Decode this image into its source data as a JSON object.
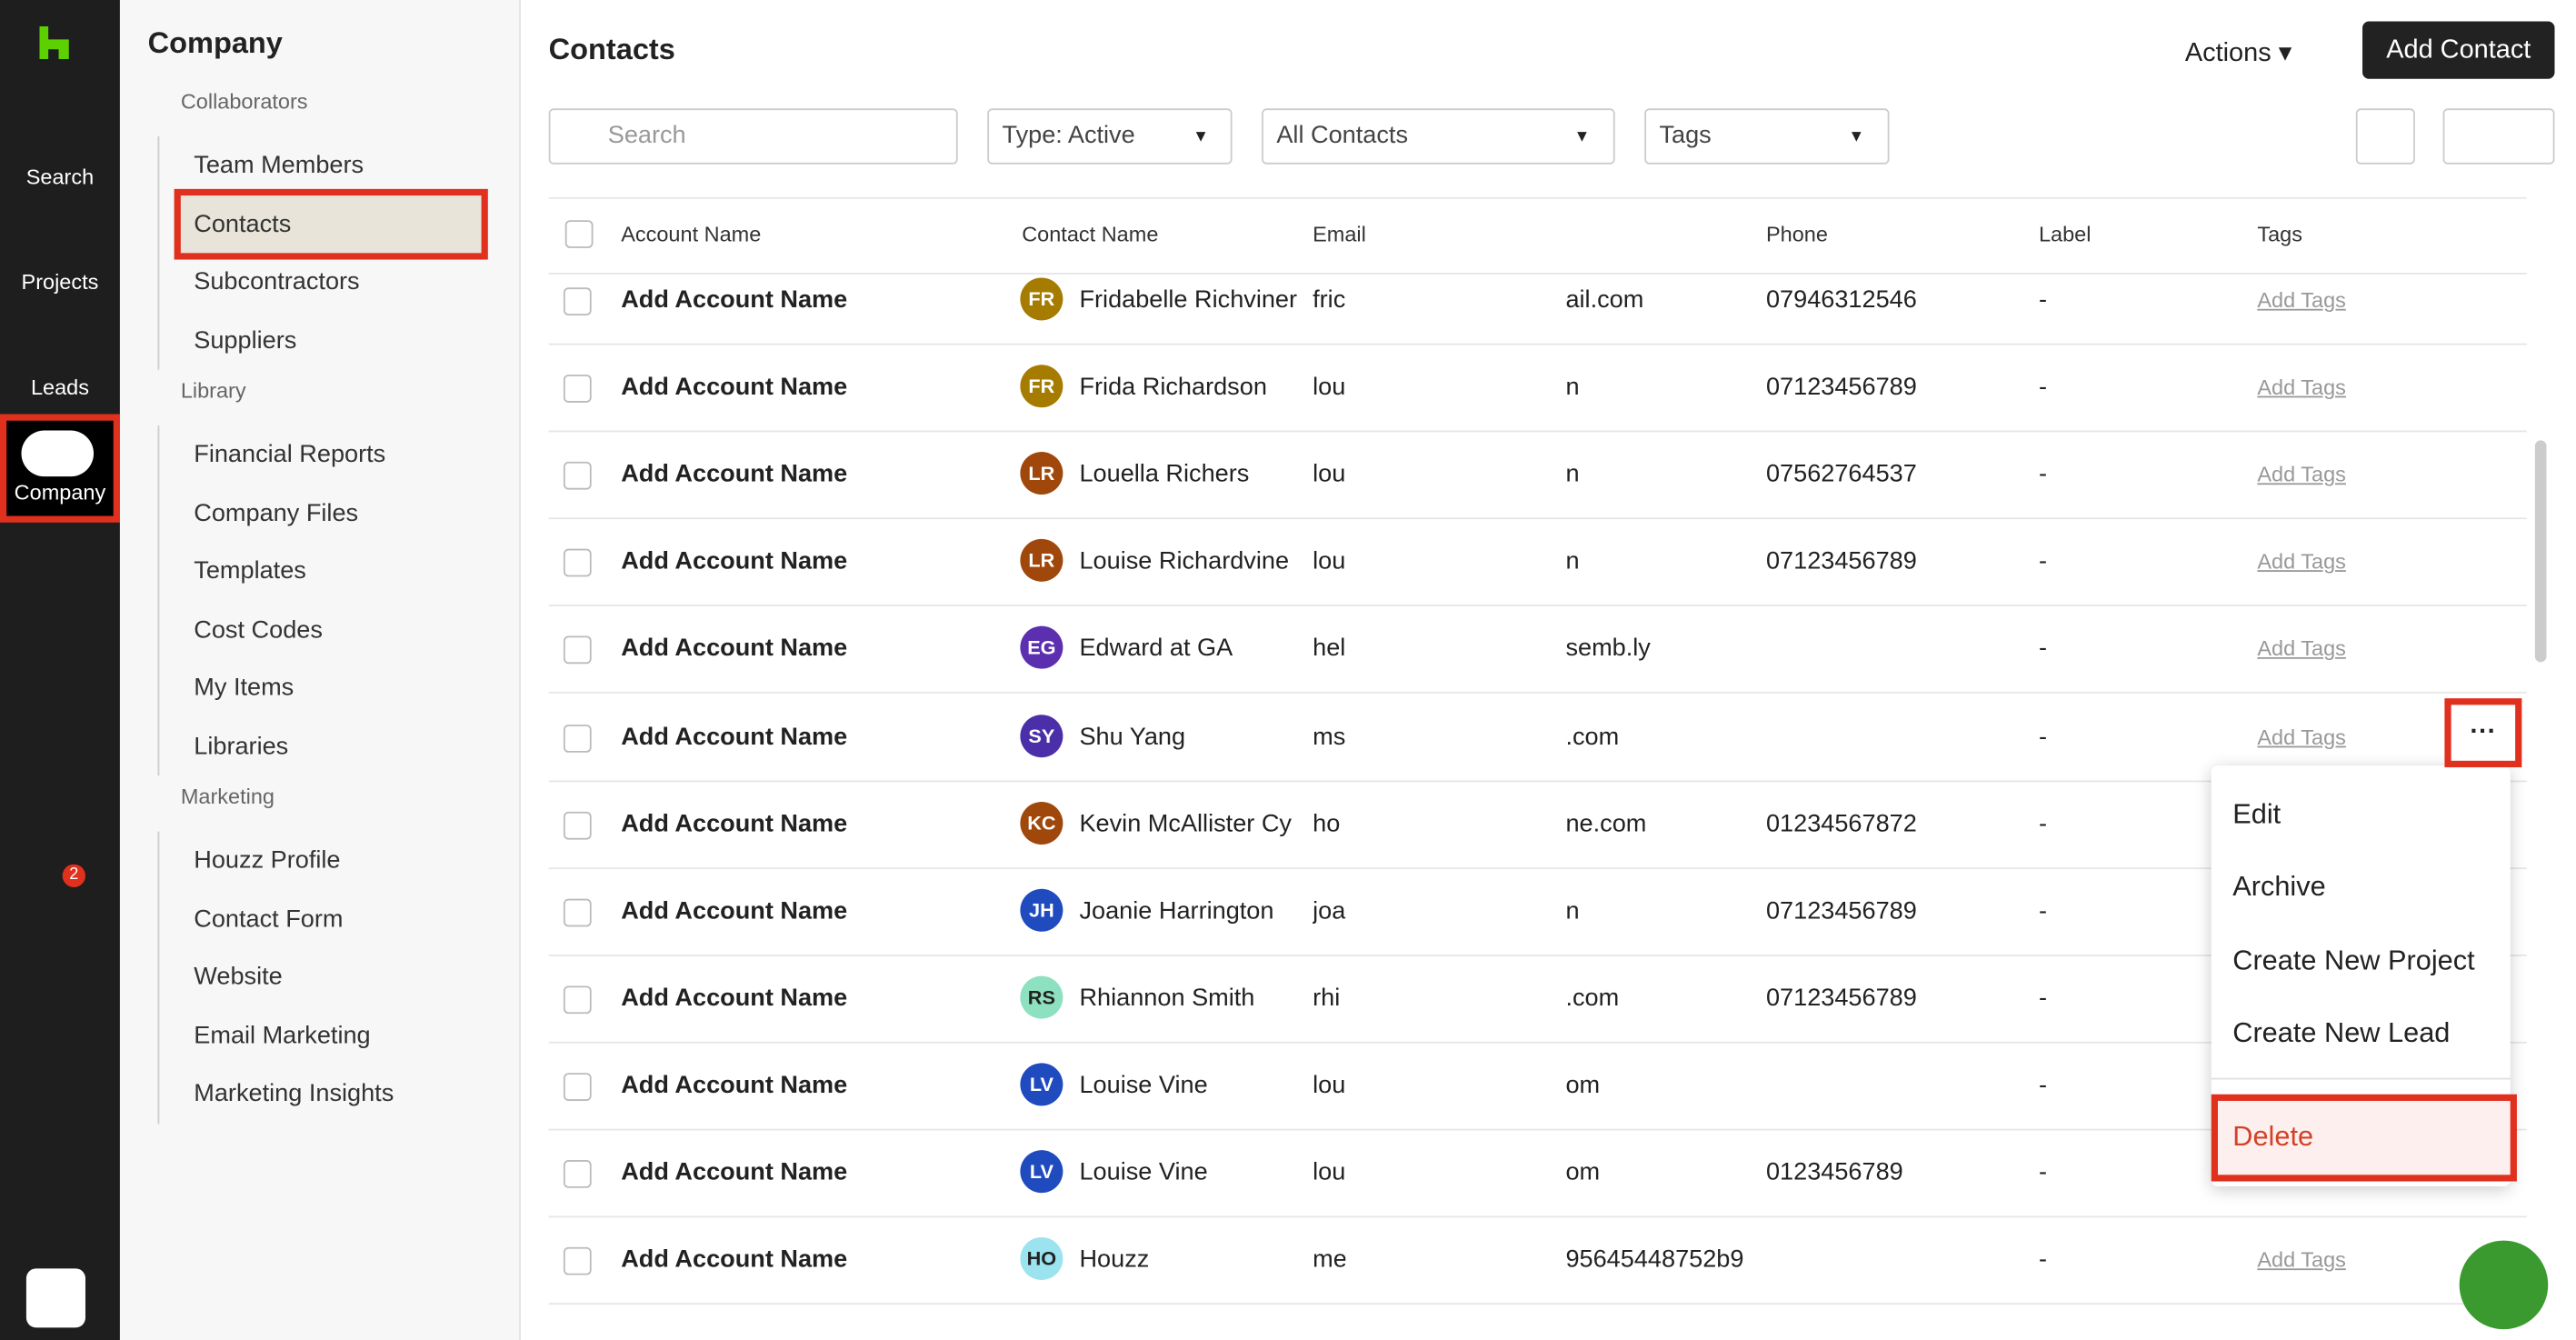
{
  "nav": {
    "items": [
      "Search",
      "Projects",
      "Leads",
      "Company"
    ],
    "badge": "2"
  },
  "sidebar": {
    "title": "Company",
    "sections": [
      {
        "title": "Collaborators",
        "items": [
          "Team Members",
          "Contacts",
          "Subcontractors",
          "Suppliers"
        ]
      },
      {
        "title": "Library",
        "items": [
          "Financial Reports",
          "Company Files",
          "Templates",
          "Cost Codes",
          "My Items",
          "Libraries"
        ]
      },
      {
        "title": "Marketing",
        "items": [
          "Houzz Profile",
          "Contact Form",
          "Website",
          "Email Marketing",
          "Marketing Insights"
        ]
      }
    ]
  },
  "header": {
    "title": "Contacts",
    "actions": "Actions",
    "add_button": "Add Contact"
  },
  "filters": {
    "search": "Search",
    "type": "Type: Active",
    "contacts": "All Contacts",
    "tags": "Tags"
  },
  "table": {
    "columns": [
      "Account Name",
      "Contact Name",
      "Email",
      "Phone",
      "Label",
      "Tags"
    ],
    "rows": [
      {
        "account": "Add Account Name",
        "initials": "FR",
        "avatar_color": "#a67c00",
        "name": "Fridabelle Richviner",
        "email_start": "fric",
        "email_end": "ail.com",
        "phone": "07946312546",
        "label": "-",
        "tags": "Add Tags"
      },
      {
        "account": "Add Account Name",
        "initials": "FR",
        "avatar_color": "#a67c00",
        "name": "Frida Richardson",
        "email_start": "lou",
        "email_end": "n",
        "phone": "07123456789",
        "label": "-",
        "tags": "Add Tags"
      },
      {
        "account": "Add Account Name",
        "initials": "LR",
        "avatar_color": "#a0480c",
        "name": "Louella Richers",
        "email_start": "lou",
        "email_end": "n",
        "phone": "07562764537",
        "label": "-",
        "tags": "Add Tags"
      },
      {
        "account": "Add Account Name",
        "initials": "LR",
        "avatar_color": "#a0480c",
        "name": "Louise Richardvine",
        "email_start": "lou",
        "email_end": "n",
        "phone": "07123456789",
        "label": "-",
        "tags": "Add Tags"
      },
      {
        "account": "Add Account Name",
        "initials": "EG",
        "avatar_color": "#5b2fb0",
        "name": "Edward at GA",
        "email_start": "hel",
        "email_end": "semb.ly",
        "phone": null,
        "label": "-",
        "tags": "Add Tags"
      },
      {
        "account": "Add Account Name",
        "initials": "SY",
        "avatar_color": "#4b2fa8",
        "name": "Shu Yang",
        "email_start": "ms",
        "email_end": ".com",
        "phone": null,
        "label": "-",
        "tags": "Add Tags"
      },
      {
        "account": "Add Account Name",
        "initials": "KC",
        "avatar_color": "#a0480c",
        "name": "Kevin McAllister Cy",
        "email_start": "ho",
        "email_end": "ne.com",
        "phone": "01234567872",
        "label": "-",
        "tags": null
      },
      {
        "account": "Add Account Name",
        "initials": "JH",
        "avatar_color": "#1f4bbf",
        "name": "Joanie Harrington",
        "email_start": "joa",
        "email_end": "n",
        "phone": "07123456789",
        "label": "-",
        "tags": null
      },
      {
        "account": "Add Account Name",
        "initials": "RS",
        "avatar_color": "#8de0c0",
        "name": "Rhiannon Smith",
        "email_start": "rhi",
        "email_end": ".com",
        "phone": "07123456789",
        "label": "-",
        "tags": null
      },
      {
        "account": "Add Account Name",
        "initials": "LV",
        "avatar_color": "#1f4bbf",
        "name": "Louise Vine",
        "email_start": "lou",
        "email_end": "om",
        "phone": null,
        "label": "-",
        "tags": null
      },
      {
        "account": "Add Account Name",
        "initials": "LV",
        "avatar_color": "#1f4bbf",
        "name": "Louise Vine",
        "email_start": "lou",
        "email_end": "om",
        "phone": "0123456789",
        "label": "-",
        "tags": null
      },
      {
        "account": "Add Account Name",
        "initials": "HO",
        "avatar_color": "#9be3ee",
        "name": "Houzz",
        "email_start": "me",
        "email_end": "95645448752b9",
        "phone": null,
        "label": "-",
        "tags": "Add Tags"
      }
    ]
  },
  "menu": {
    "items": [
      "Edit",
      "Archive",
      "Create New Project",
      "Create New Lead",
      "Delete"
    ]
  }
}
